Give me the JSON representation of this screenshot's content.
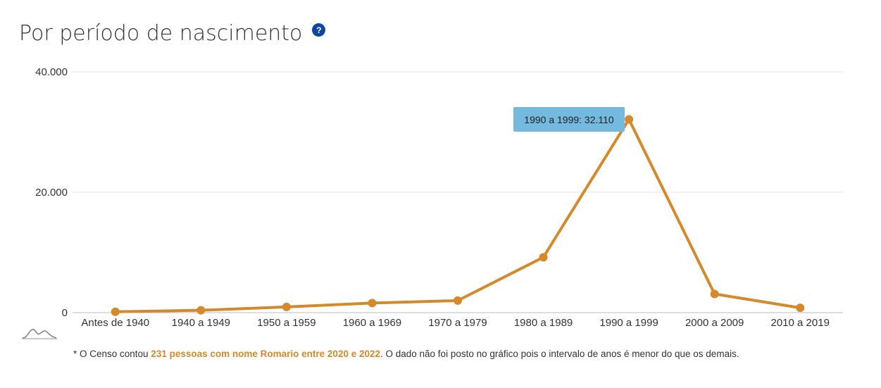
{
  "header": {
    "title": "Por período de nascimento",
    "help_icon": "?"
  },
  "colors": {
    "line": "#d4892a",
    "tooltip_bg": "#74b9de",
    "help_icon": "#0d47a1",
    "highlight": "#d4892a"
  },
  "chart_data": {
    "type": "line",
    "title": "Por período de nascimento",
    "categories": [
      "Antes de 1940",
      "1940 a 1949",
      "1950 a 1959",
      "1960 a 1969",
      "1970 a 1979",
      "1980 a 1989",
      "1990 a 1999",
      "2000 a 2009",
      "2010 a 2019"
    ],
    "series": [
      {
        "values": [
          150,
          400,
          950,
          1600,
          2000,
          9200,
          32110,
          3100,
          800
        ]
      }
    ],
    "ylim": [
      0,
      40000
    ],
    "yticks": [
      0,
      20000,
      40000
    ],
    "ytick_labels": [
      "0",
      "20.000",
      "40.000"
    ],
    "grid": true,
    "tooltip": "1990 a 1999: 32.110"
  },
  "footnote": {
    "before": "* O Censo contou ",
    "highlight": "231 pessoas com nome Romario entre 2020 e 2022",
    "after": ". O dado não foi posto no gráfico pois o intervalo de anos é menor do que os demais."
  },
  "logo_icon": "mountain-logo-icon"
}
